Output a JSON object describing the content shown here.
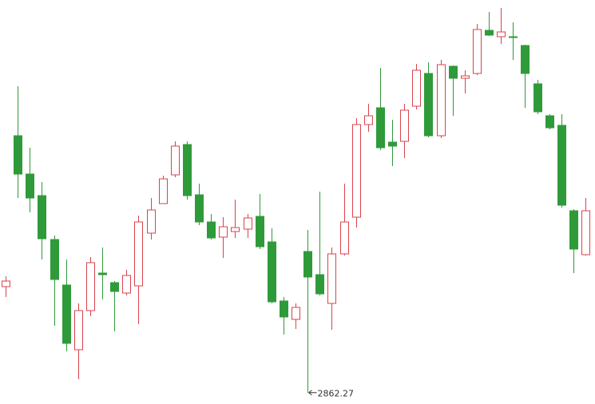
{
  "chart_data": {
    "type": "candlestick",
    "up_color": "#d9434c",
    "down_color": "#2f9a3a",
    "ylim": [
      2848,
      3354
    ],
    "open": [
      2995,
      3184,
      3136,
      3109,
      3054,
      2997,
      2916,
      2965,
      3012,
      3000,
      2987,
      2996,
      3062,
      3099,
      3135,
      3173,
      3110,
      3076,
      3057,
      3064,
      3067,
      3083,
      3051,
      2977,
      2954,
      3039,
      3010,
      2974,
      3036,
      3082,
      3198,
      3219,
      3176,
      3177,
      3221,
      3262,
      3184,
      3271,
      3256,
      3262,
      3316,
      3308,
      3308,
      3297,
      3249,
      3209,
      3197,
      3090,
      3035
    ],
    "high": [
      3008,
      3246,
      3169,
      3126,
      3059,
      3029,
      2974,
      3032,
      3044,
      3002,
      3016,
      3084,
      3106,
      3134,
      3177,
      3177,
      3124,
      3086,
      3082,
      3104,
      3086,
      3111,
      3068,
      2982,
      2974,
      3066,
      3114,
      3044,
      3124,
      3206,
      3224,
      3269,
      3204,
      3224,
      3274,
      3276,
      3279,
      3272,
      3266,
      3324,
      3339,
      3344,
      3326,
      3298,
      3254,
      3211,
      3211,
      3092,
      3106
    ],
    "low": [
      2982,
      3106,
      3088,
      3029,
      2946,
      2914,
      2879,
      2958,
      2979,
      2939,
      2984,
      2948,
      3054,
      3099,
      3132,
      3104,
      3072,
      3054,
      3031,
      3056,
      3056,
      3042,
      2974,
      2935,
      2942,
      2862.27,
      2984,
      2941,
      3034,
      3069,
      3189,
      3166,
      3146,
      3156,
      3217,
      3182,
      3181,
      3209,
      3237,
      3260,
      3309,
      3299,
      3279,
      3219,
      3211,
      3192,
      3094,
      3012,
      3034
    ],
    "close": [
      3002,
      3136,
      3106,
      3055,
      3004,
      2924,
      2965,
      3025,
      3010,
      2989,
      3009,
      3076,
      3091,
      3130,
      3171,
      3109,
      3076,
      3056,
      3070,
      3069,
      3081,
      3045,
      2976,
      2957,
      2969,
      3007,
      2986,
      3036,
      3076,
      3198,
      3209,
      3169,
      3171,
      3216,
      3266,
      3184,
      3273,
      3256,
      3259,
      3317,
      3310,
      3314,
      3307,
      3262,
      3214,
      3194,
      3097,
      3042,
      3090
    ],
    "low_label": "2862.27"
  }
}
